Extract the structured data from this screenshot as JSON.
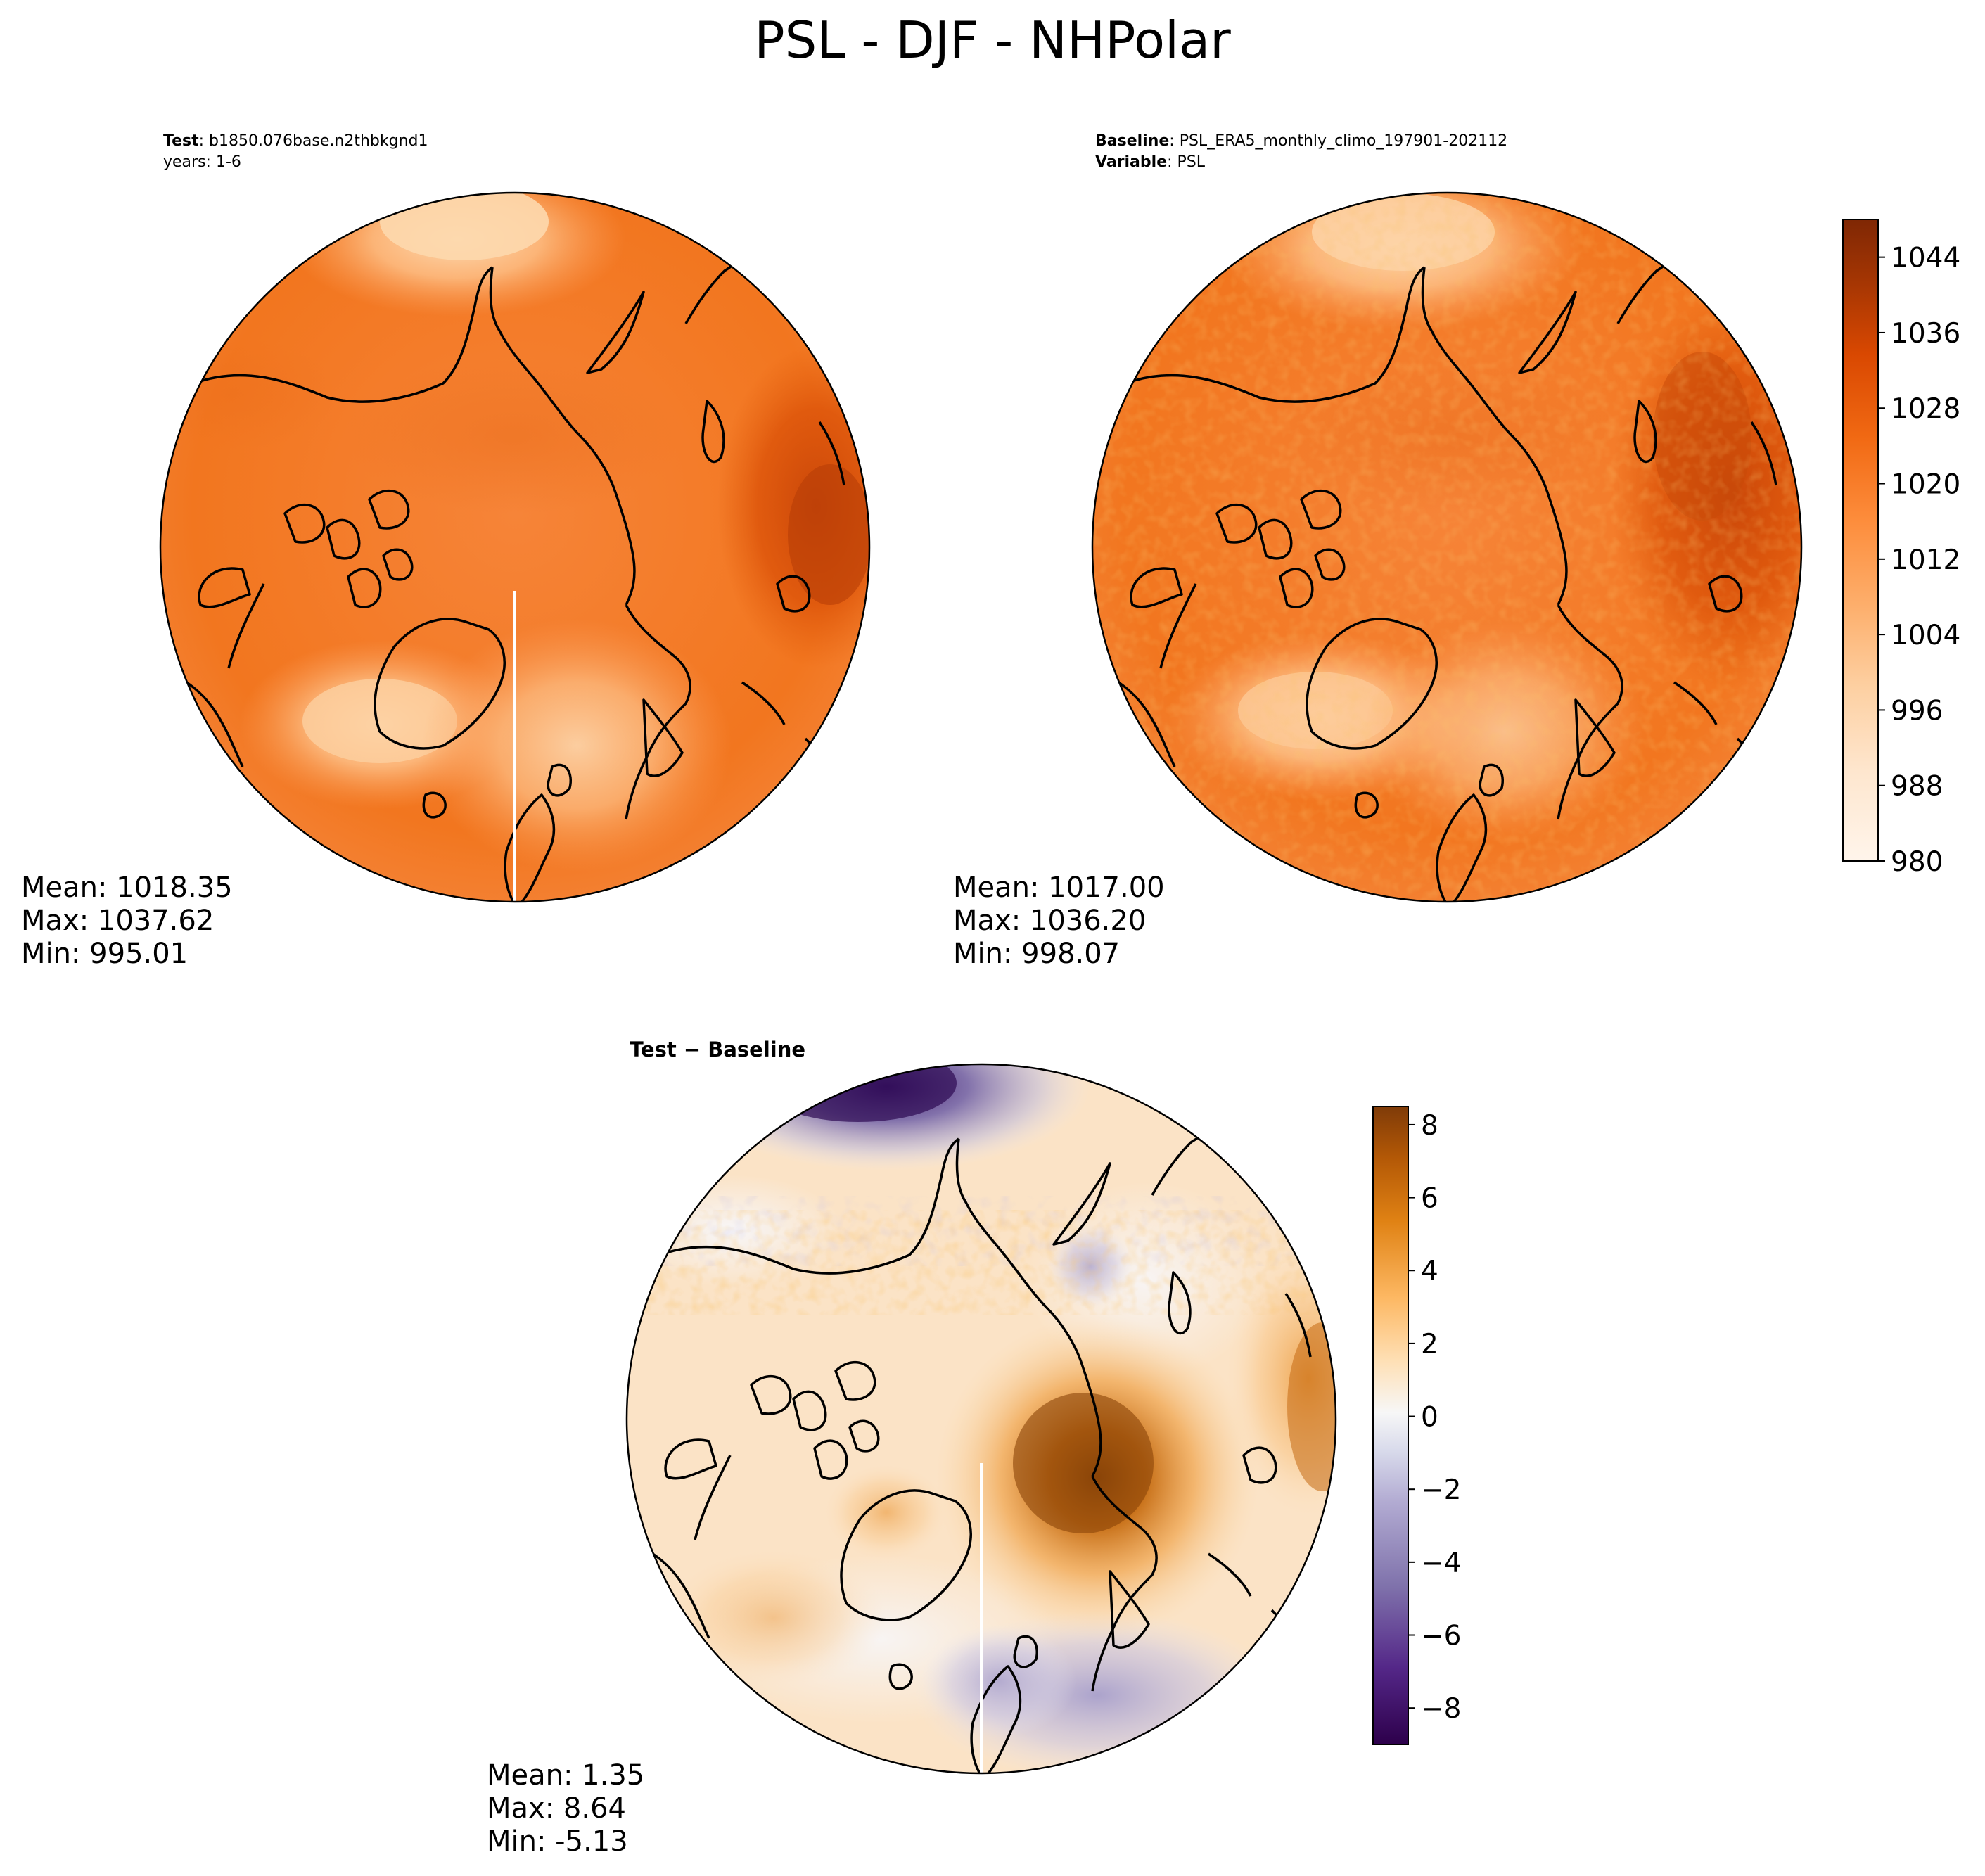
{
  "suptitle": "PSL - DJF - NHPolar",
  "colors": {
    "psl_ramp": [
      "#fff5eb",
      "#fee6ce",
      "#fdd0a2",
      "#fdae6b",
      "#fd8d3c",
      "#f16913",
      "#d94801",
      "#a63603",
      "#7f2704"
    ],
    "diff_ramp": [
      "#2d004b",
      "#542788",
      "#8073ac",
      "#b2abd2",
      "#d8daeb",
      "#f7f7f7",
      "#fee0b6",
      "#fdb863",
      "#e08214",
      "#b35806",
      "#7f3b08"
    ],
    "coast": "#000000"
  },
  "panels": {
    "test": {
      "header_label": "Test",
      "header_value": "b1850.076base.n2thbkgnd1",
      "header_line2": "years: 1-6",
      "stats": {
        "mean": "Mean: 1018.35",
        "max": "Max: 1037.62",
        "min": "Min: 995.01"
      }
    },
    "baseline": {
      "header_label": "Baseline",
      "header_value": "PSL_ERA5_monthly_climo_197901-202112",
      "header_label2": "Variable",
      "header_value2": "PSL",
      "stats": {
        "mean": "Mean: 1017.00",
        "max": "Max: 1036.20",
        "min": "Min: 998.07"
      }
    },
    "diff": {
      "title": "Test − Baseline",
      "stats": {
        "mean": "Mean:  1.35",
        "max": "Max:  8.64",
        "min": "Min: -5.13"
      }
    }
  },
  "chart_data": [
    {
      "type": "heatmap",
      "title": "Test: b1850.076base.n2thbkgnd1, years: 1-6",
      "variable": "PSL",
      "season": "DJF",
      "projection": "North Polar Stereographic",
      "units_range": [
        980,
        1048
      ],
      "stats": {
        "mean": 1018.35,
        "max": 1037.62,
        "min": 995.01
      }
    },
    {
      "type": "heatmap",
      "title": "Baseline: PSL_ERA5_monthly_climo_197901-202112",
      "variable": "PSL",
      "season": "DJF",
      "projection": "North Polar Stereographic",
      "units_range": [
        980,
        1048
      ],
      "stats": {
        "mean": 1017.0,
        "max": 1036.2,
        "min": 998.07
      }
    },
    {
      "type": "heatmap",
      "title": "Test − Baseline",
      "variable": "PSL",
      "season": "DJF",
      "projection": "North Polar Stereographic",
      "units_range": [
        -9,
        8.5
      ],
      "stats": {
        "mean": 1.35,
        "max": 8.64,
        "min": -5.13
      }
    },
    {
      "type": "colorbar",
      "for": "test and baseline",
      "range": [
        980,
        1048
      ],
      "ticks": [
        "980",
        "988",
        "996",
        "1004",
        "1012",
        "1020",
        "1028",
        "1036",
        "1044"
      ],
      "tick_values": [
        980,
        988,
        996,
        1004,
        1012,
        1020,
        1028,
        1036,
        1044
      ]
    },
    {
      "type": "colorbar",
      "for": "difference",
      "range": [
        -9,
        8.5
      ],
      "ticks": [
        "−8",
        "−6",
        "−4",
        "−2",
        "0",
        "2",
        "4",
        "6",
        "8"
      ],
      "tick_values": [
        -8,
        -6,
        -4,
        -2,
        0,
        2,
        4,
        6,
        8
      ]
    }
  ]
}
